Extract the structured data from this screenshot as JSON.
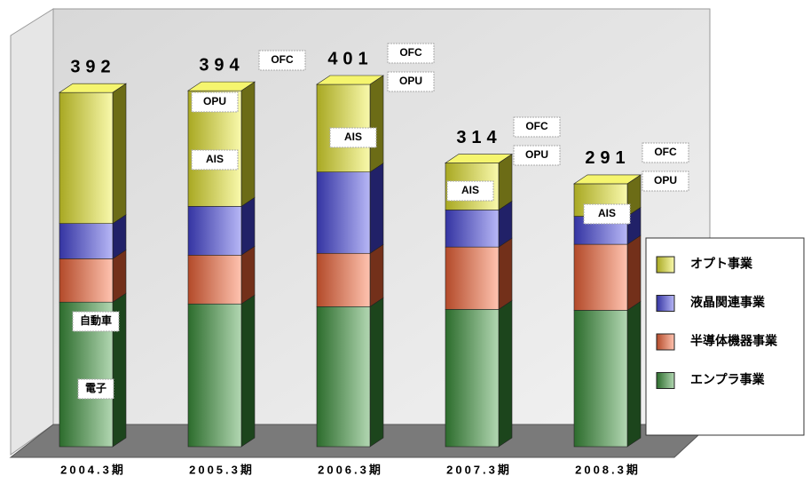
{
  "chart_data": {
    "type": "bar3d_stacked",
    "categories": [
      "2004.3期",
      "2005.3期",
      "2006.3期",
      "2007.3期",
      "2008.3期"
    ],
    "series": [
      {
        "name": "エンプラ事業",
        "color": "#3f9a3f",
        "values": [
          160,
          158,
          155,
          152,
          151
        ]
      },
      {
        "name": "半導体機器事業",
        "color": "#ff6a3a",
        "values": [
          48,
          54,
          59,
          69,
          73
        ]
      },
      {
        "name": "液晶関連事業",
        "color": "#4a4ae8",
        "values": [
          39,
          54,
          90,
          41,
          31
        ]
      },
      {
        "name": "オプト事業",
        "color": "#f0f030",
        "values": [
          145,
          128,
          97,
          52,
          36
        ]
      }
    ],
    "totals": [
      "392",
      "394",
      "401",
      "314",
      "291"
    ],
    "bar_labels": [
      [
        "自動車",
        "電子"
      ],
      [
        "OPU",
        "AIS",
        "OFC"
      ],
      [
        "OFC",
        "OPU",
        "AIS"
      ],
      [
        "OFC",
        "OPU",
        "AIS"
      ],
      [
        "OFC",
        "OPU",
        "AIS"
      ]
    ],
    "legend": "right"
  }
}
